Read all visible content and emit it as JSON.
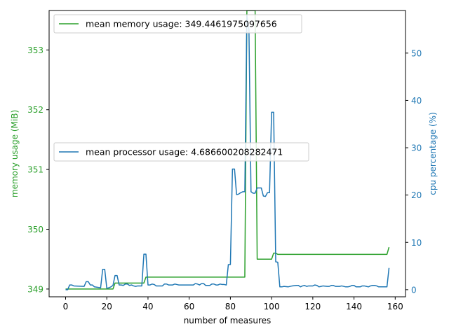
{
  "chart_data": {
    "type": "line",
    "dual_axis": true,
    "xlabel": "number of measures",
    "xlim": [
      -8,
      165
    ],
    "x_ticks": [
      0,
      20,
      40,
      60,
      80,
      100,
      120,
      140,
      160
    ],
    "left_axis": {
      "label": "memory usage (MiB)",
      "color": "#2ca02c",
      "ylim": [
        348.87,
        353.66
      ],
      "ticks": [
        349,
        350,
        351,
        352,
        353
      ]
    },
    "right_axis": {
      "label": "cpu percentage (%)",
      "color": "#1f77b4",
      "ylim": [
        -1.5,
        59
      ],
      "ticks": [
        0,
        10,
        20,
        30,
        40,
        50
      ]
    },
    "series": [
      {
        "name": "mean memory usage: 349.4461975097656",
        "axis": "left",
        "color": "#2ca02c",
        "legend_position": "top-left",
        "points": [
          [
            0,
            349
          ],
          [
            23,
            349
          ],
          [
            24,
            349.1
          ],
          [
            38,
            349.1
          ],
          [
            39,
            349.2
          ],
          [
            87,
            349.2
          ],
          [
            88,
            353.66
          ],
          [
            92,
            353.66
          ],
          [
            93,
            349.5
          ],
          [
            100,
            349.5
          ],
          [
            101,
            349.6
          ],
          [
            102,
            349.6
          ],
          [
            103,
            349.58
          ],
          [
            156,
            349.58
          ],
          [
            157,
            349.7
          ]
        ]
      },
      {
        "name": "mean processor usage: 4.686600208282471",
        "axis": "right",
        "color": "#1f77b4",
        "legend_position": "center-left",
        "points": [
          [
            0,
            0
          ],
          [
            1,
            0
          ],
          [
            2,
            1
          ],
          [
            3,
            1
          ],
          [
            4,
            0.8
          ],
          [
            9,
            0.7
          ],
          [
            10,
            1.7
          ],
          [
            11,
            1.7
          ],
          [
            12,
            1
          ],
          [
            13,
            1
          ],
          [
            14,
            0.6
          ],
          [
            17,
            0.4
          ],
          [
            18,
            4.3
          ],
          [
            19,
            4.3
          ],
          [
            20,
            0.3
          ],
          [
            21,
            0.4
          ],
          [
            22,
            0.6
          ],
          [
            23,
            0.9
          ],
          [
            24,
            3
          ],
          [
            25,
            3
          ],
          [
            26,
            1
          ],
          [
            27,
            1
          ],
          [
            28,
            0.9
          ],
          [
            29,
            1.2
          ],
          [
            30,
            1.2
          ],
          [
            31,
            0.9
          ],
          [
            32,
            1
          ],
          [
            33,
            0.8
          ],
          [
            34,
            0.7
          ],
          [
            35,
            0.8
          ],
          [
            37,
            0.8
          ],
          [
            38,
            7.5
          ],
          [
            39,
            7.5
          ],
          [
            40,
            1
          ],
          [
            41,
            1
          ],
          [
            42,
            1.2
          ],
          [
            43,
            1.1
          ],
          [
            44,
            0.8
          ],
          [
            45,
            0.8
          ],
          [
            47,
            0.8
          ],
          [
            48,
            1.2
          ],
          [
            49,
            1.2
          ],
          [
            50,
            1
          ],
          [
            52,
            1
          ],
          [
            53,
            1.2
          ],
          [
            54,
            1.1
          ],
          [
            55,
            1
          ],
          [
            57,
            1
          ],
          [
            58,
            1
          ],
          [
            59,
            1
          ],
          [
            60,
            1
          ],
          [
            62,
            1
          ],
          [
            63,
            1.3
          ],
          [
            64,
            1.2
          ],
          [
            65,
            1
          ],
          [
            66,
            1.3
          ],
          [
            67,
            1.3
          ],
          [
            68,
            0.9
          ],
          [
            70,
            0.9
          ],
          [
            71,
            1.2
          ],
          [
            72,
            1.2
          ],
          [
            73,
            1
          ],
          [
            74,
            1
          ],
          [
            75,
            1.2
          ],
          [
            76,
            1.1
          ],
          [
            77,
            1.1
          ],
          [
            78,
            1
          ],
          [
            79,
            5.3
          ],
          [
            80,
            5.3
          ],
          [
            81,
            25.5
          ],
          [
            82,
            25.5
          ],
          [
            83,
            20.1
          ],
          [
            84,
            20.2
          ],
          [
            85,
            20.5
          ],
          [
            86,
            20.7
          ],
          [
            87,
            20.7
          ],
          [
            88,
            58
          ],
          [
            89,
            55
          ],
          [
            90,
            20.7
          ],
          [
            91,
            20.4
          ],
          [
            92,
            20.4
          ],
          [
            93,
            21.5
          ],
          [
            94,
            21.5
          ],
          [
            95,
            21.5
          ],
          [
            96,
            19.8
          ],
          [
            97,
            19.7
          ],
          [
            98,
            20.5
          ],
          [
            99,
            20.5
          ],
          [
            100,
            37.5
          ],
          [
            101,
            37.5
          ],
          [
            102,
            5.9
          ],
          [
            103,
            5.8
          ],
          [
            104,
            0.6
          ],
          [
            105,
            0.6
          ],
          [
            106,
            0.7
          ],
          [
            108,
            0.6
          ],
          [
            110,
            0.8
          ],
          [
            112,
            0.9
          ],
          [
            113,
            0.9
          ],
          [
            114,
            0.6
          ],
          [
            115,
            0.8
          ],
          [
            116,
            0.9
          ],
          [
            117,
            0.7
          ],
          [
            118,
            0.8
          ],
          [
            120,
            0.8
          ],
          [
            121,
            1
          ],
          [
            122,
            0.9
          ],
          [
            123,
            0.6
          ],
          [
            124,
            0.7
          ],
          [
            125,
            0.8
          ],
          [
            127,
            0.7
          ],
          [
            128,
            0.7
          ],
          [
            129,
            0.9
          ],
          [
            130,
            0.9
          ],
          [
            131,
            0.7
          ],
          [
            133,
            0.7
          ],
          [
            134,
            0.8
          ],
          [
            136,
            0.6
          ],
          [
            137,
            0.6
          ],
          [
            138,
            0.7
          ],
          [
            139,
            0.9
          ],
          [
            140,
            0.9
          ],
          [
            141,
            0.6
          ],
          [
            143,
            0.6
          ],
          [
            144,
            0.8
          ],
          [
            145,
            0.8
          ],
          [
            146,
            0.7
          ],
          [
            147,
            0.6
          ],
          [
            148,
            0.8
          ],
          [
            149,
            0.9
          ],
          [
            150,
            0.9
          ],
          [
            151,
            0.8
          ],
          [
            152,
            0.6
          ],
          [
            154,
            0.6
          ],
          [
            155,
            0.6
          ],
          [
            156,
            0.6
          ],
          [
            157,
            4.6
          ]
        ]
      }
    ]
  }
}
